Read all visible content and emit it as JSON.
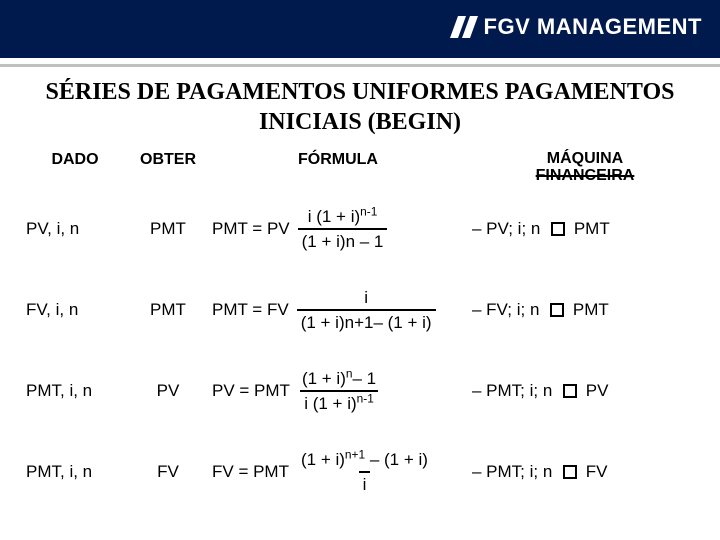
{
  "colors": {
    "header_bg": "#001a4d",
    "brand_text": "#ffffff",
    "divider": "#c0c0c0",
    "text": "#000000"
  },
  "brand": "FGV MANAGEMENT",
  "title": "SÉRIES DE PAGAMENTOS UNIFORMES PAGAMENTOS INICIAIS (BEGIN)",
  "headers": {
    "dado": "DADO",
    "obter": "OBTER",
    "formula": "FÓRMULA",
    "calc_line1": "MÁQUINA",
    "calc_line2": "FINANCEIRA"
  },
  "rows": [
    {
      "dado": "PV, i, n",
      "obter": "PMT",
      "lhs": "PMT = PV",
      "num": "i (1 + i)<sup>n-1</sup>",
      "den": "(1 + i)n – 1",
      "calc_pre": "– PV; i; n",
      "calc_key": "PMT"
    },
    {
      "dado": "FV, i, n",
      "obter": "PMT",
      "lhs": "PMT = FV",
      "num": "i",
      "den": "(1 + i)n+1– (1 + i)",
      "calc_pre": "– FV; i; n",
      "calc_key": "PMT"
    },
    {
      "dado": "PMT, i, n",
      "obter": "PV",
      "lhs": "PV = PMT",
      "num": "(1 + i)<sup>n</sup>– 1",
      "den": "i (1 + i)<sup>n-1</sup>",
      "calc_pre": "– PMT; i; n",
      "calc_key": "PV"
    },
    {
      "dado": "PMT, i, n",
      "obter": "FV",
      "lhs": "FV = PMT",
      "num": "(1 + i)<sup>n+1</sup> – (1 + i)",
      "den": "i",
      "calc_pre": "– PMT; i; n",
      "calc_key": "FV"
    }
  ]
}
